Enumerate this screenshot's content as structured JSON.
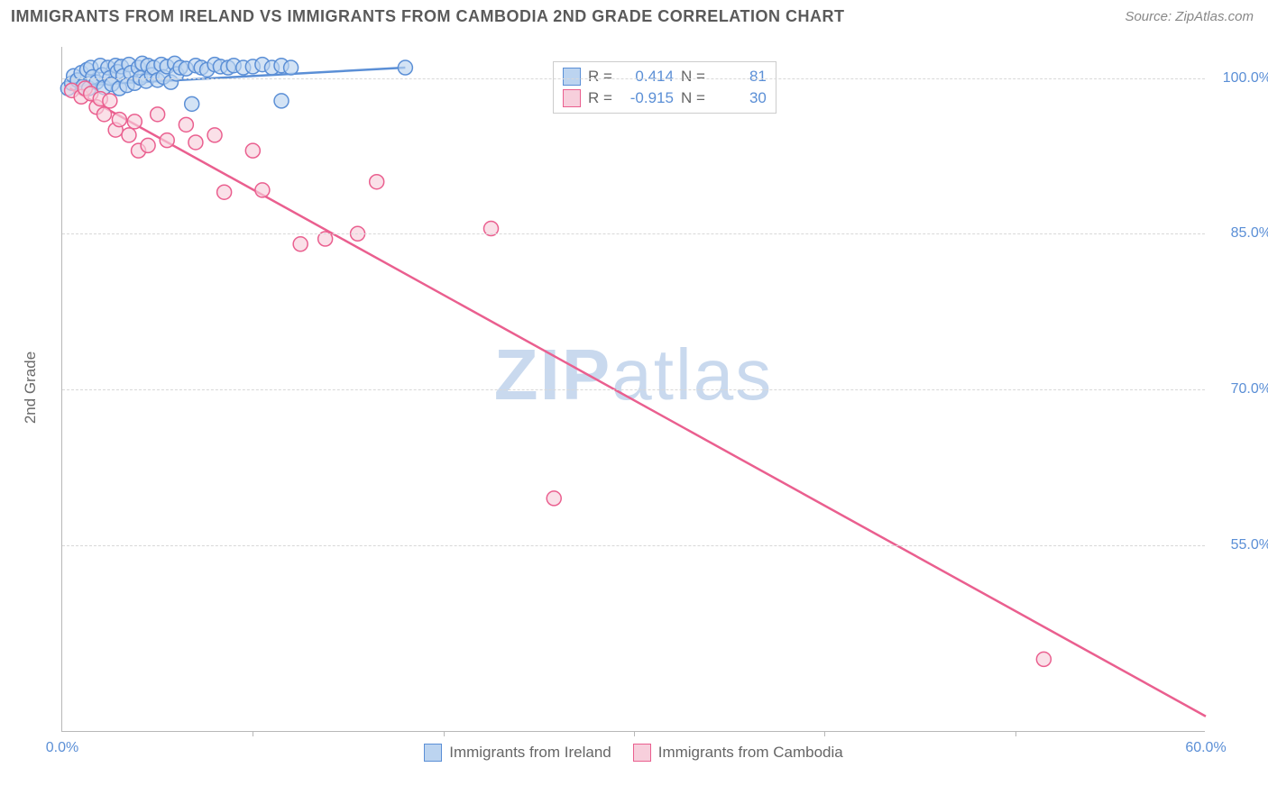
{
  "header": {
    "title": "IMMIGRANTS FROM IRELAND VS IMMIGRANTS FROM CAMBODIA 2ND GRADE CORRELATION CHART",
    "source": "Source: ZipAtlas.com"
  },
  "watermark": {
    "part1": "ZIP",
    "part2": "atlas"
  },
  "chart": {
    "type": "scatter",
    "y_axis_label": "2nd Grade",
    "xlim": [
      0,
      60
    ],
    "ylim": [
      37,
      103
    ],
    "x_ticks": [
      0,
      10,
      20,
      30,
      40,
      50,
      60
    ],
    "x_tick_labels": [
      "0.0%",
      "",
      "",
      "",
      "",
      "",
      "60.0%"
    ],
    "y_ticks": [
      55,
      70,
      85,
      100
    ],
    "y_tick_labels": [
      "55.0%",
      "70.0%",
      "85.0%",
      "100.0%"
    ],
    "background_color": "#ffffff",
    "grid_color": "#d8d8d8",
    "axis_color": "#b8b8b8",
    "tick_label_color": "#5b8fd6",
    "marker_radius": 8,
    "marker_stroke_width": 1.5,
    "line_width": 2.5,
    "series": [
      {
        "name": "Immigrants from Ireland",
        "color_fill": "#bcd4f0",
        "color_stroke": "#5b8fd6",
        "R": "0.414",
        "N": "81",
        "trend": {
          "x1": 0.2,
          "y1": 99.2,
          "x2": 18,
          "y2": 101.0
        },
        "points": [
          [
            0.3,
            99.0
          ],
          [
            0.5,
            99.5
          ],
          [
            0.6,
            100.2
          ],
          [
            0.8,
            99.8
          ],
          [
            1.0,
            100.5
          ],
          [
            1.1,
            99.2
          ],
          [
            1.3,
            100.8
          ],
          [
            1.4,
            99.0
          ],
          [
            1.5,
            101.0
          ],
          [
            1.6,
            100.1
          ],
          [
            1.8,
            99.6
          ],
          [
            2.0,
            101.2
          ],
          [
            2.1,
            100.3
          ],
          [
            2.2,
            99.1
          ],
          [
            2.4,
            101.0
          ],
          [
            2.5,
            100.0
          ],
          [
            2.6,
            99.4
          ],
          [
            2.8,
            101.2
          ],
          [
            2.9,
            100.6
          ],
          [
            3.0,
            99.0
          ],
          [
            3.1,
            101.1
          ],
          [
            3.2,
            100.2
          ],
          [
            3.4,
            99.3
          ],
          [
            3.5,
            101.3
          ],
          [
            3.6,
            100.5
          ],
          [
            3.8,
            99.5
          ],
          [
            4.0,
            101.0
          ],
          [
            4.1,
            100.0
          ],
          [
            4.2,
            101.4
          ],
          [
            4.4,
            99.7
          ],
          [
            4.5,
            101.2
          ],
          [
            4.7,
            100.3
          ],
          [
            4.8,
            101.0
          ],
          [
            5.0,
            99.8
          ],
          [
            5.2,
            101.3
          ],
          [
            5.3,
            100.1
          ],
          [
            5.5,
            101.1
          ],
          [
            5.7,
            99.6
          ],
          [
            5.9,
            101.4
          ],
          [
            6.0,
            100.4
          ],
          [
            6.2,
            101.0
          ],
          [
            6.5,
            100.9
          ],
          [
            6.8,
            97.5
          ],
          [
            7.0,
            101.2
          ],
          [
            7.3,
            101.0
          ],
          [
            7.6,
            100.8
          ],
          [
            8.0,
            101.3
          ],
          [
            8.3,
            101.1
          ],
          [
            8.7,
            101.0
          ],
          [
            9.0,
            101.2
          ],
          [
            9.5,
            101.0
          ],
          [
            10.0,
            101.1
          ],
          [
            10.5,
            101.3
          ],
          [
            11.0,
            101.0
          ],
          [
            11.5,
            101.2
          ],
          [
            12.0,
            101.0
          ],
          [
            11.5,
            97.8
          ],
          [
            18.0,
            101.0
          ]
        ]
      },
      {
        "name": "Immigrants from Cambodia",
        "color_fill": "#f7cfdc",
        "color_stroke": "#ea5f8f",
        "R": "-0.915",
        "N": "30",
        "trend": {
          "x1": 0.4,
          "y1": 99.0,
          "x2": 60,
          "y2": 38.5
        },
        "points": [
          [
            0.5,
            98.8
          ],
          [
            1.0,
            98.2
          ],
          [
            1.2,
            99.0
          ],
          [
            1.5,
            98.5
          ],
          [
            1.8,
            97.2
          ],
          [
            2.0,
            98.0
          ],
          [
            2.2,
            96.5
          ],
          [
            2.5,
            97.8
          ],
          [
            2.8,
            95.0
          ],
          [
            3.0,
            96.0
          ],
          [
            3.5,
            94.5
          ],
          [
            3.8,
            95.8
          ],
          [
            4.0,
            93.0
          ],
          [
            4.5,
            93.5
          ],
          [
            5.0,
            96.5
          ],
          [
            5.5,
            94.0
          ],
          [
            6.5,
            95.5
          ],
          [
            7.0,
            93.8
          ],
          [
            8.0,
            94.5
          ],
          [
            8.5,
            89.0
          ],
          [
            10.0,
            93.0
          ],
          [
            10.5,
            89.2
          ],
          [
            12.5,
            84.0
          ],
          [
            13.8,
            84.5
          ],
          [
            15.5,
            85.0
          ],
          [
            16.5,
            90.0
          ],
          [
            22.5,
            85.5
          ],
          [
            25.8,
            59.5
          ],
          [
            51.5,
            44.0
          ]
        ]
      }
    ]
  },
  "legend_top": {
    "r_label": "R =",
    "n_label": "N ="
  },
  "legend_bottom": {
    "items": [
      "Immigrants from Ireland",
      "Immigrants from Cambodia"
    ]
  }
}
